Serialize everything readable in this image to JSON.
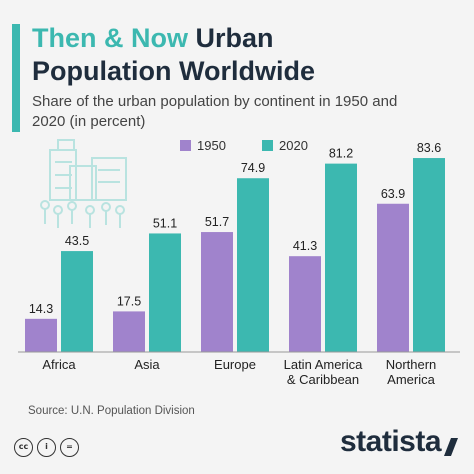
{
  "title": {
    "highlight": "Then & Now",
    "rest_line1": "Urban",
    "line2": "Population Worldwide"
  },
  "subtitle": "Share of the urban population by continent in 1950 and 2020 (in percent)",
  "source": "Source: U.N. Population Division",
  "brand": "statista",
  "license_icons": [
    "creative-commons-icon",
    "attribution-icon",
    "no-derivatives-icon"
  ],
  "license_labels": [
    "cc",
    "i",
    "="
  ],
  "colors": {
    "accent": "#3cb8b0",
    "series_1950": "#a083cc",
    "series_2020": "#3cb8b0",
    "text_dark": "#1f2d3d"
  },
  "chart_data": {
    "type": "bar",
    "categories": [
      "Africa",
      "Asia",
      "Europe",
      "Latin America & Caribbean",
      "Northern America"
    ],
    "category_lines": [
      [
        "Africa"
      ],
      [
        "Asia"
      ],
      [
        "Europe"
      ],
      [
        "Latin America",
        "& Caribbean"
      ],
      [
        "Northern",
        "America"
      ]
    ],
    "series": [
      {
        "name": "1950",
        "values": [
          14.3,
          17.5,
          51.7,
          41.3,
          63.9
        ],
        "color": "#a083cc"
      },
      {
        "name": "2020",
        "values": [
          43.5,
          51.1,
          74.9,
          81.2,
          83.6
        ],
        "color": "#3cb8b0"
      }
    ],
    "ylim": [
      0,
      100
    ],
    "grid": false,
    "legend": "top-center",
    "data_labels": true
  }
}
